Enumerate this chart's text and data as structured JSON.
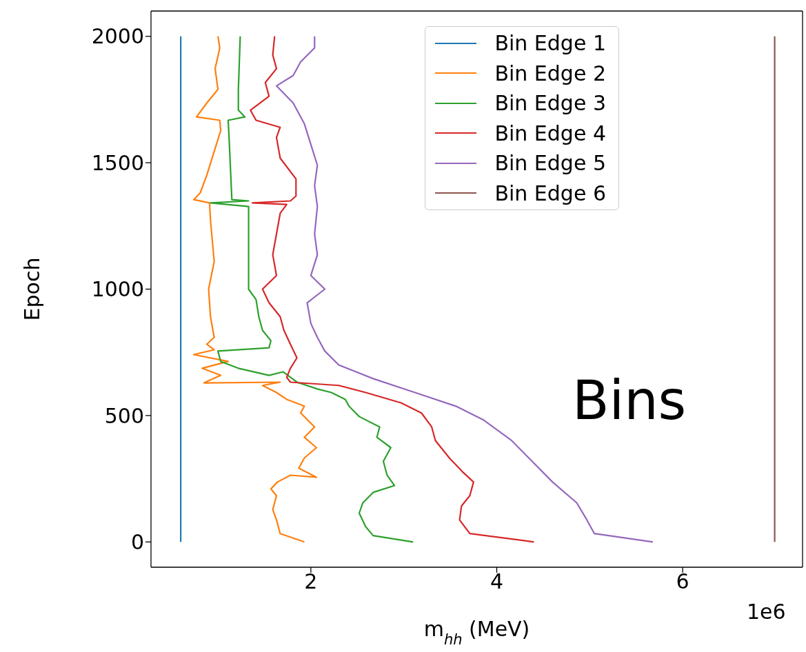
{
  "chart_data": {
    "type": "line",
    "xlabel": "m$_{hh}$ (MeV)",
    "ylabel": "Epoch",
    "xlim": [
      0.28,
      7.29
    ],
    "xticks": [
      2,
      4,
      6
    ],
    "ylim": [
      -100,
      2100
    ],
    "yticks": [
      0,
      500,
      1000,
      1500,
      2000
    ],
    "grid": false,
    "legend": "top right",
    "marker": "none",
    "line_style": "solid",
    "annotations": [
      "Bins",
      "1e6"
    ],
    "series": [
      {
        "name": "Bin Edge 1",
        "color": "#1f77b4",
        "x": [
          0.6,
          0.6
        ],
        "values": [
          0,
          2000
        ]
      },
      {
        "name": "Bin Edge 2",
        "color": "#ff7f0e",
        "x": [
          1.93,
          1.67,
          1.63,
          1.59,
          1.63,
          1.57,
          1.64,
          1.78,
          2.06,
          1.87,
          1.93,
          2.06,
          1.93,
          2.04,
          1.89,
          1.93,
          1.74,
          1.63,
          1.48,
          1.67,
          0.85,
          1.03,
          0.83,
          1.11,
          0.74,
          0.96,
          0.88,
          0.96,
          0.92,
          0.9,
          0.96,
          0.92,
          0.91,
          0.74,
          0.81,
          0.88,
          0.96,
          1.03,
          1.02,
          0.77,
          0.88,
          1.0,
          0.97,
          1.02,
          1.0
        ],
        "values": [
          0,
          33,
          87,
          128,
          183,
          210,
          237,
          264,
          256,
          292,
          332,
          373,
          414,
          455,
          510,
          537,
          564,
          591,
          619,
          632,
          629,
          659,
          687,
          714,
          741,
          760,
          782,
          809,
          891,
          1000,
          1109,
          1272,
          1341,
          1354,
          1381,
          1450,
          1545,
          1627,
          1668,
          1681,
          1736,
          1790,
          1872,
          1954,
          2000
        ]
      },
      {
        "name": "Bin Edge 3",
        "color": "#2ca02c",
        "x": [
          3.1,
          2.67,
          2.59,
          2.52,
          2.56,
          2.67,
          2.9,
          2.82,
          2.78,
          2.86,
          2.71,
          2.74,
          2.52,
          2.41,
          2.37,
          2.22,
          2.07,
          1.85,
          1.7,
          1.55,
          1.22,
          1.03,
          1.0,
          1.55,
          1.57,
          1.48,
          1.44,
          1.41,
          1.33,
          1.33,
          0.92,
          1.33,
          1.15,
          1.12,
          1.11,
          1.29,
          1.22,
          1.22,
          1.24
        ],
        "values": [
          0,
          25,
          60,
          114,
          155,
          196,
          223,
          264,
          319,
          373,
          414,
          455,
          496,
          537,
          564,
          591,
          605,
          632,
          673,
          659,
          687,
          714,
          755,
          768,
          796,
          837,
          891,
          959,
          1000,
          1327,
          1341,
          1349,
          1354,
          1600,
          1668,
          1681,
          1708,
          1790,
          2000
        ]
      },
      {
        "name": "Bin Edge 4",
        "color": "#d62728",
        "x": [
          4.4,
          3.71,
          3.6,
          3.62,
          3.71,
          3.75,
          3.63,
          3.49,
          3.34,
          3.3,
          3.19,
          2.97,
          2.59,
          2.3,
          1.78,
          1.74,
          1.78,
          1.85,
          1.78,
          1.71,
          1.67,
          1.55,
          1.48,
          1.63,
          1.59,
          1.63,
          1.67,
          1.74,
          1.37,
          1.78,
          1.84,
          1.84,
          1.67,
          1.63,
          1.67,
          1.41,
          1.35,
          1.55,
          1.51,
          1.63,
          1.59,
          1.61
        ],
        "values": [
          0,
          33,
          87,
          142,
          183,
          237,
          278,
          332,
          401,
          455,
          510,
          550,
          591,
          619,
          632,
          651,
          687,
          728,
          782,
          837,
          891,
          946,
          1000,
          1054,
          1136,
          1218,
          1300,
          1335,
          1341,
          1349,
          1368,
          1436,
          1518,
          1600,
          1640,
          1668,
          1708,
          1763,
          1817,
          1872,
          1926,
          2000
        ]
      },
      {
        "name": "Bin Edge 5",
        "color": "#9467bd",
        "x": [
          5.68,
          5.05,
          4.97,
          4.86,
          4.6,
          4.38,
          4.16,
          3.86,
          3.56,
          3.12,
          2.67,
          2.3,
          2.15,
          2.07,
          2.0,
          1.96,
          2.15,
          2.0,
          2.07,
          2.04,
          2.07,
          2.04,
          2.07,
          2.0,
          1.93,
          1.81,
          1.63,
          1.81,
          1.89,
          2.04,
          2.04
        ],
        "values": [
          0,
          33,
          87,
          155,
          237,
          319,
          401,
          482,
          537,
          591,
          646,
          700,
          755,
          809,
          864,
          946,
          1000,
          1054,
          1136,
          1218,
          1327,
          1409,
          1490,
          1572,
          1654,
          1736,
          1804,
          1845,
          1899,
          1954,
          2000
        ]
      },
      {
        "name": "Bin Edge 6",
        "color": "#8c564b",
        "x": [
          6.99,
          6.99
        ],
        "values": [
          0,
          2000
        ]
      }
    ]
  }
}
